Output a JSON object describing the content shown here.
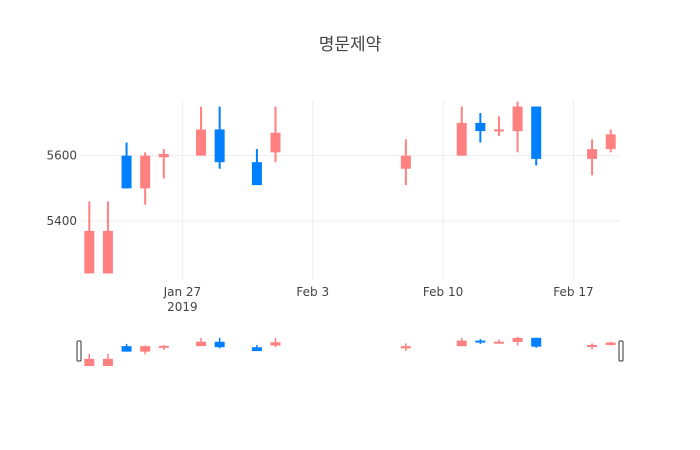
{
  "chart_data": {
    "type": "candlestick",
    "title": "명문제약",
    "xlabel": "",
    "ylabel": "",
    "ylim": [
      5220,
      5770
    ],
    "y_ticks": [
      5400,
      5600
    ],
    "y_tick_labels": [
      "5400",
      "5600"
    ],
    "x_ticks": [
      {
        "date": "2019-01-27",
        "label": "Jan 27",
        "sublabel": "2019"
      },
      {
        "date": "2019-02-03",
        "label": "Feb 3",
        "sublabel": ""
      },
      {
        "date": "2019-02-10",
        "label": "Feb 10",
        "sublabel": ""
      },
      {
        "date": "2019-02-17",
        "label": "Feb 17",
        "sublabel": ""
      }
    ],
    "xlim": [
      "2019-01-21T12:00",
      "2019-02-19T12:00"
    ],
    "increasing_color": "#ff8080",
    "decreasing_color": "#0080ff",
    "grid": true,
    "legend": "none",
    "rangeslider": true,
    "candles": [
      {
        "date": "2019-01-22",
        "open": 5240,
        "high": 5460,
        "low": 5240,
        "close": 5370
      },
      {
        "date": "2019-01-23",
        "open": 5240,
        "high": 5460,
        "low": 5240,
        "close": 5370
      },
      {
        "date": "2019-01-24",
        "open": 5600,
        "high": 5640,
        "low": 5500,
        "close": 5500
      },
      {
        "date": "2019-01-25",
        "open": 5500,
        "high": 5610,
        "low": 5450,
        "close": 5600
      },
      {
        "date": "2019-01-26",
        "open": 5595,
        "high": 5620,
        "low": 5530,
        "close": 5605
      },
      {
        "date": "2019-01-28",
        "open": 5600,
        "high": 5750,
        "low": 5600,
        "close": 5680
      },
      {
        "date": "2019-01-29",
        "open": 5680,
        "high": 5750,
        "low": 5560,
        "close": 5580
      },
      {
        "date": "2019-01-31",
        "open": 5580,
        "high": 5620,
        "low": 5510,
        "close": 5510
      },
      {
        "date": "2019-02-01",
        "open": 5610,
        "high": 5750,
        "low": 5580,
        "close": 5670
      },
      {
        "date": "2019-02-08",
        "open": 5560,
        "high": 5650,
        "low": 5510,
        "close": 5600
      },
      {
        "date": "2019-02-11",
        "open": 5600,
        "high": 5750,
        "low": 5600,
        "close": 5700
      },
      {
        "date": "2019-02-12",
        "open": 5700,
        "high": 5730,
        "low": 5640,
        "close": 5675
      },
      {
        "date": "2019-02-13",
        "open": 5680,
        "high": 5720,
        "low": 5660,
        "close": 5680
      },
      {
        "date": "2019-02-14",
        "open": 5675,
        "high": 5765,
        "low": 5610,
        "close": 5750
      },
      {
        "date": "2019-02-15",
        "open": 5750,
        "high": 5750,
        "low": 5570,
        "close": 5590
      },
      {
        "date": "2019-02-18",
        "open": 5590,
        "high": 5650,
        "low": 5540,
        "close": 5620
      },
      {
        "date": "2019-02-19",
        "open": 5620,
        "high": 5680,
        "low": 5610,
        "close": 5665
      }
    ]
  }
}
